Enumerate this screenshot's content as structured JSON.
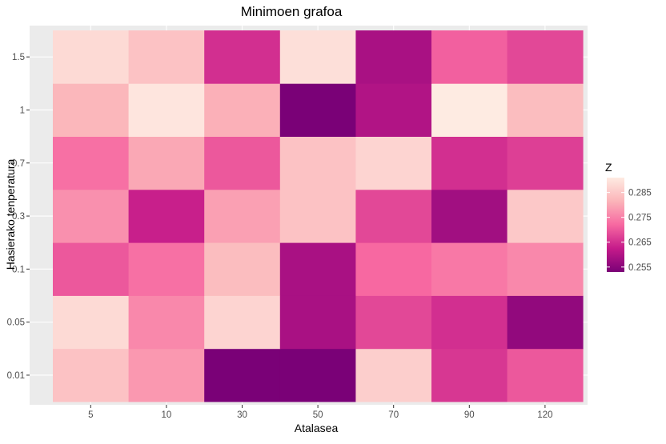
{
  "chart_data": {
    "type": "heatmap",
    "title": "Minimoen grafoa",
    "xlabel": "Atalasea",
    "ylabel": "Hasierako tenperatura",
    "x_categories": [
      "5",
      "10",
      "30",
      "50",
      "70",
      "90",
      "120"
    ],
    "y_categories": [
      "0.01",
      "0.05",
      "0.1",
      "0.3",
      "0.7",
      "1",
      "1.5"
    ],
    "values": [
      [
        0.284,
        0.278,
        0.253,
        0.253,
        0.286,
        0.266,
        0.27
      ],
      [
        0.288,
        0.276,
        0.287,
        0.259,
        0.268,
        0.265,
        0.256
      ],
      [
        0.27,
        0.273,
        0.283,
        0.259,
        0.272,
        0.274,
        0.276
      ],
      [
        0.277,
        0.263,
        0.279,
        0.284,
        0.268,
        0.258,
        0.285
      ],
      [
        0.273,
        0.28,
        0.27,
        0.284,
        0.287,
        0.265,
        0.267
      ],
      [
        0.282,
        0.29,
        0.281,
        0.253,
        0.26,
        0.291,
        0.283
      ],
      [
        0.288,
        0.284,
        0.265,
        0.289,
        0.259,
        0.271,
        0.268
      ]
    ],
    "legend": {
      "title": "Z",
      "ticks": [
        "0.285",
        "0.275",
        "0.265",
        "0.255"
      ],
      "tick_values": [
        0.285,
        0.275,
        0.265,
        0.255
      ],
      "range": [
        0.253,
        0.291
      ],
      "placement": "right"
    },
    "colors": {
      "low": "#7a0177",
      "mid_low": "#c51b8a",
      "mid": "#f768a1",
      "mid_high": "#fbb4b9",
      "high": "#feebe2",
      "panel_background": "#ebebeb",
      "grid": "#ffffff",
      "text": "#4d4d4d",
      "title_text": "#000000"
    },
    "grid": true
  }
}
